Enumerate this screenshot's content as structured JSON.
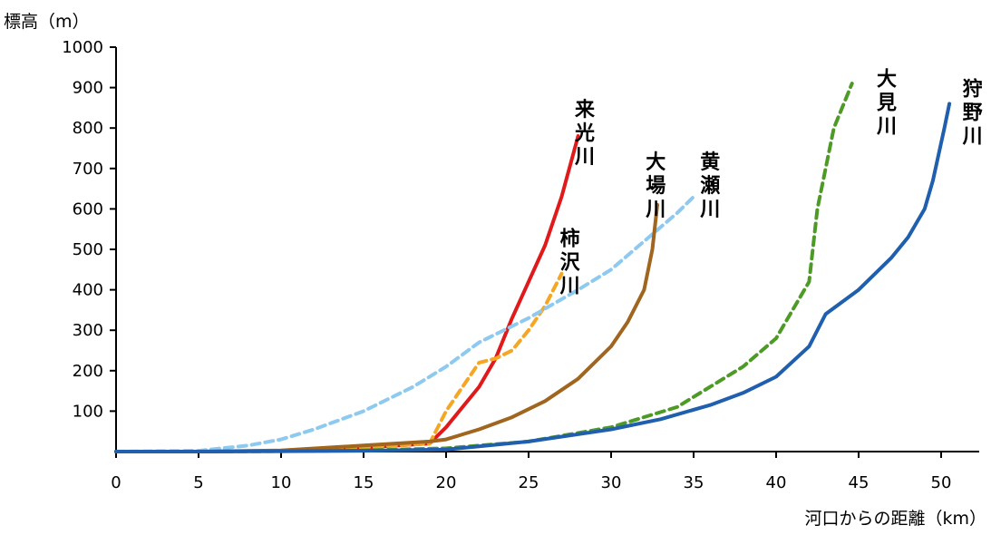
{
  "chart_data": {
    "type": "line",
    "title": "",
    "ylabel": "標高（m）",
    "xlabel": "河口からの距離（km）",
    "xlim": [
      0,
      52
    ],
    "ylim": [
      0,
      1000
    ],
    "x_ticks": [
      0,
      5,
      10,
      15,
      20,
      25,
      30,
      35,
      40,
      45,
      50
    ],
    "y_ticks": [
      100,
      200,
      300,
      400,
      500,
      600,
      700,
      800,
      900,
      1000
    ],
    "grid": false,
    "series": [
      {
        "name": "来光川",
        "color": "#e0191b",
        "dash": "solid",
        "points": [
          [
            0,
            0
          ],
          [
            5,
            0
          ],
          [
            10,
            2
          ],
          [
            15,
            10
          ],
          [
            19,
            20
          ],
          [
            20,
            60
          ],
          [
            21,
            110
          ],
          [
            22,
            160
          ],
          [
            23,
            230
          ],
          [
            24,
            330
          ],
          [
            25,
            420
          ],
          [
            26,
            510
          ],
          [
            27,
            630
          ],
          [
            28,
            780
          ]
        ]
      },
      {
        "name": "柿沢川",
        "color": "#f5a623",
        "dash": "dashed",
        "points": [
          [
            0,
            0
          ],
          [
            5,
            0
          ],
          [
            10,
            2
          ],
          [
            15,
            10
          ],
          [
            19,
            20
          ],
          [
            20,
            100
          ],
          [
            21,
            160
          ],
          [
            22,
            220
          ],
          [
            23,
            230
          ],
          [
            24,
            250
          ],
          [
            25,
            300
          ],
          [
            26,
            360
          ],
          [
            27,
            440
          ]
        ]
      },
      {
        "name": "黄瀬川",
        "color": "#8ec9ef",
        "dash": "dashed",
        "points": [
          [
            0,
            0
          ],
          [
            5,
            2
          ],
          [
            8,
            15
          ],
          [
            10,
            30
          ],
          [
            12,
            55
          ],
          [
            15,
            100
          ],
          [
            18,
            160
          ],
          [
            20,
            210
          ],
          [
            22,
            270
          ],
          [
            25,
            330
          ],
          [
            28,
            400
          ],
          [
            30,
            450
          ],
          [
            32,
            520
          ],
          [
            34,
            590
          ],
          [
            35,
            630
          ]
        ]
      },
      {
        "name": "大場川",
        "color": "#a0651f",
        "dash": "solid",
        "points": [
          [
            0,
            0
          ],
          [
            5,
            0
          ],
          [
            10,
            3
          ],
          [
            15,
            15
          ],
          [
            19,
            25
          ],
          [
            20,
            30
          ],
          [
            22,
            55
          ],
          [
            24,
            85
          ],
          [
            26,
            125
          ],
          [
            28,
            180
          ],
          [
            30,
            260
          ],
          [
            31,
            320
          ],
          [
            32,
            400
          ],
          [
            32.5,
            500
          ],
          [
            32.8,
            610
          ]
        ]
      },
      {
        "name": "大見川",
        "color": "#4e9a27",
        "dash": "dashed",
        "points": [
          [
            0,
            0
          ],
          [
            5,
            0
          ],
          [
            10,
            1
          ],
          [
            15,
            3
          ],
          [
            20,
            8
          ],
          [
            25,
            25
          ],
          [
            30,
            60
          ],
          [
            34,
            110
          ],
          [
            36,
            160
          ],
          [
            38,
            210
          ],
          [
            40,
            280
          ],
          [
            41,
            350
          ],
          [
            42,
            420
          ],
          [
            42.5,
            600
          ],
          [
            43,
            700
          ],
          [
            43.5,
            800
          ],
          [
            44,
            850
          ],
          [
            44.6,
            910
          ]
        ]
      },
      {
        "name": "狩野川",
        "color": "#1f5fad",
        "dash": "solid",
        "points": [
          [
            0,
            0
          ],
          [
            5,
            0
          ],
          [
            10,
            1
          ],
          [
            15,
            2
          ],
          [
            20,
            5
          ],
          [
            25,
            25
          ],
          [
            30,
            55
          ],
          [
            33,
            80
          ],
          [
            36,
            115
          ],
          [
            38,
            145
          ],
          [
            40,
            185
          ],
          [
            42,
            260
          ],
          [
            43,
            340
          ],
          [
            45,
            400
          ],
          [
            47,
            480
          ],
          [
            48,
            530
          ],
          [
            49,
            600
          ],
          [
            49.5,
            670
          ],
          [
            50.2,
            800
          ],
          [
            50.5,
            860
          ]
        ]
      }
    ],
    "annotations": [
      {
        "text": "来光川",
        "x": 27.8,
        "y": 830
      },
      {
        "text": "柿沢川",
        "x": 26.9,
        "y": 510
      },
      {
        "text": "黄瀬川",
        "x": 35.4,
        "y": 700
      },
      {
        "text": "大場川",
        "x": 32.1,
        "y": 700
      },
      {
        "text": "大見川",
        "x": 46.1,
        "y": 905
      },
      {
        "text": "狩野川",
        "x": 51.3,
        "y": 880
      }
    ]
  }
}
